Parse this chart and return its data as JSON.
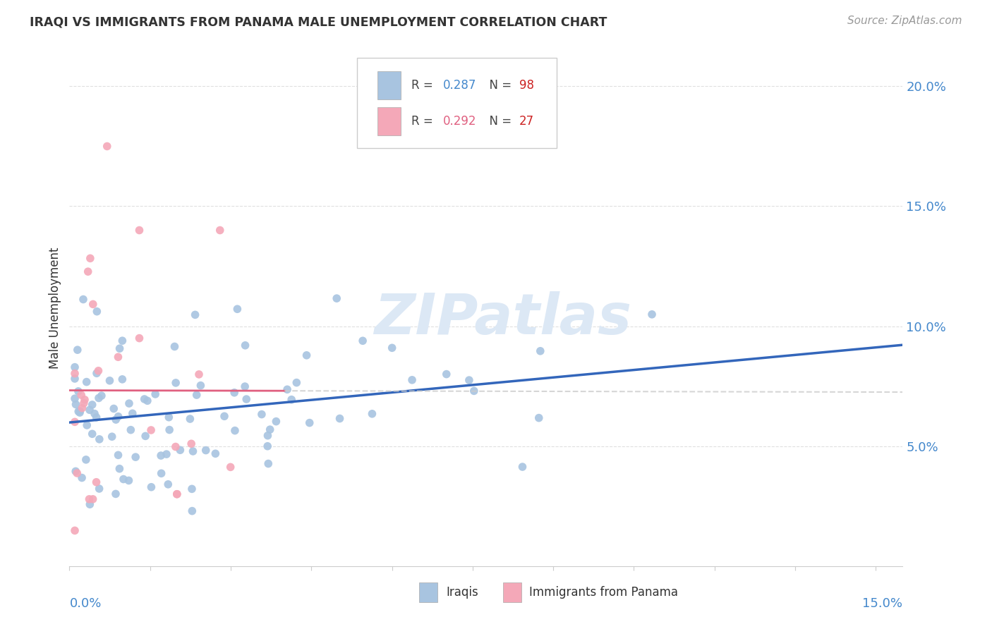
{
  "title": "IRAQI VS IMMIGRANTS FROM PANAMA MALE UNEMPLOYMENT CORRELATION CHART",
  "source": "Source: ZipAtlas.com",
  "ylabel": "Male Unemployment",
  "y_ticks": [
    0.05,
    0.1,
    0.15,
    0.2
  ],
  "y_tick_labels": [
    "5.0%",
    "10.0%",
    "15.0%",
    "20.0%"
  ],
  "xlim": [
    0.0,
    0.155
  ],
  "ylim": [
    0.0,
    0.215
  ],
  "iraqi_R": 0.287,
  "iraqi_N": 98,
  "panama_R": 0.292,
  "panama_N": 27,
  "iraqi_color": "#a8c4e0",
  "panama_color": "#f4a8b8",
  "iraqi_line_color": "#3366bb",
  "panama_line_color": "#e06080",
  "watermark_color": "#dce8f5",
  "background_color": "#ffffff",
  "grid_color": "#e0e0e0",
  "text_color": "#333333",
  "axis_label_color": "#4488cc",
  "source_color": "#999999"
}
